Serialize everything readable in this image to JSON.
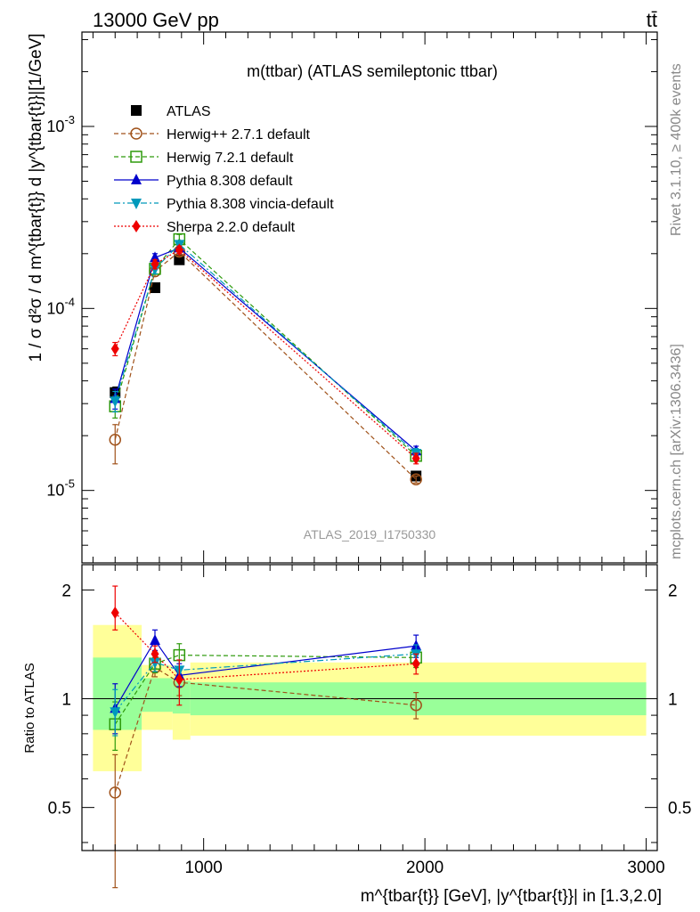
{
  "header": {
    "left": "13000 GeV pp",
    "right": "tt̄"
  },
  "side_labels": {
    "rivet": "Rivet 3.1.10, ≥ 400k events",
    "mcplots": "mcplots.cern.ch [arXiv:1306.3436]"
  },
  "watermark": "ATLAS_2019_I1750330",
  "colors": {
    "atlas": "#000000",
    "herwigpp": "#a0521a",
    "herwig7": "#2e9a0c",
    "pythia": "#0000cc",
    "vincia": "#0099bb",
    "sherpa": "#ee0000",
    "band_inner": "#99ff99",
    "band_outer": "#ffff99"
  },
  "chart_data": [
    {
      "type": "scatter",
      "title": "m(ttbar) (ATLAS semileptonic ttbar)",
      "ylabel": "1 / σ d²σ / d m^{tbar{t}} d |y^{tbar{t}}|[1/GeV]",
      "xlabel": "",
      "xlim": [
        450,
        3050
      ],
      "ylim": [
        4e-06,
        0.0033
      ],
      "yscale": "log",
      "yticks": [
        {
          "label": "10^-5",
          "value": 1e-05
        },
        {
          "label": "10^-4",
          "value": 0.0001
        },
        {
          "label": "10^-3",
          "value": 0.001
        }
      ],
      "legend_position": "top-left",
      "x": [
        600,
        780,
        890,
        1960
      ],
      "series": [
        {
          "name": "ATLAS",
          "key": "atlas",
          "marker": "square-filled",
          "line": "none",
          "values": [
            3.45e-05,
            0.00013,
            0.000185,
            1.2e-05
          ],
          "err_lo": [
            3.2e-05,
            0.000126,
            0.00018,
            1.15e-05
          ],
          "err_hi": [
            3.7e-05,
            0.000134,
            0.00019,
            1.25e-05
          ]
        },
        {
          "name": "Herwig++ 2.7.1 default",
          "key": "herwigpp",
          "marker": "circle-open",
          "line": "dashed",
          "values": [
            1.9e-05,
            0.00016,
            0.000205,
            1.15e-05
          ],
          "err_lo": [
            1.4e-05,
            0.00015,
            0.000195,
            1.1e-05
          ],
          "err_hi": [
            2.3e-05,
            0.00017,
            0.000215,
            1.2e-05
          ]
        },
        {
          "name": "Herwig 7.2.1 default",
          "key": "herwig7",
          "marker": "square-open",
          "line": "dashed",
          "values": [
            2.9e-05,
            0.000165,
            0.00024,
            1.55e-05
          ],
          "err_lo": [
            2.5e-05,
            0.000155,
            0.000225,
            1.45e-05
          ],
          "err_hi": [
            3.3e-05,
            0.000175,
            0.000255,
            1.65e-05
          ]
        },
        {
          "name": "Pythia 8.308 default",
          "key": "pythia",
          "marker": "triangle-up",
          "line": "solid",
          "values": [
            3.2e-05,
            0.00019,
            0.000215,
            1.65e-05
          ],
          "err_lo": [
            2.8e-05,
            0.00018,
            0.000205,
            1.55e-05
          ],
          "err_hi": [
            3.6e-05,
            0.0002,
            0.000225,
            1.75e-05
          ]
        },
        {
          "name": "Pythia 8.308 vincia-default",
          "key": "vincia",
          "marker": "triangle-down",
          "line": "dashdot",
          "values": [
            3.1e-05,
            0.000165,
            0.000225,
            1.6e-05
          ],
          "err_lo": [
            2.7e-05,
            0.000155,
            0.000215,
            1.5e-05
          ],
          "err_hi": [
            3.5e-05,
            0.000175,
            0.000235,
            1.7e-05
          ]
        },
        {
          "name": "Sherpa 2.2.0 default",
          "key": "sherpa",
          "marker": "diamond",
          "line": "dotted",
          "values": [
            6e-05,
            0.000175,
            0.00021,
            1.5e-05
          ],
          "err_lo": [
            5.5e-05,
            0.000165,
            0.0002,
            1.4e-05
          ],
          "err_hi": [
            6.5e-05,
            0.000185,
            0.00022,
            1.6e-05
          ]
        }
      ]
    },
    {
      "type": "scatter",
      "title": "",
      "ylabel": "Ratio to ATLAS",
      "xlabel": "m^{tbar{t}} [GeV], |y^{tbar{t}}| in [1.3,2.0]",
      "xlim": [
        450,
        3050
      ],
      "ylim": [
        0.38,
        2.35
      ],
      "yscale": "log",
      "yticks": [
        {
          "label": "0.5",
          "value": 0.5
        },
        {
          "label": "1",
          "value": 1
        },
        {
          "label": "2",
          "value": 2
        }
      ],
      "xticks": [
        {
          "label": "1000",
          "value": 1000
        },
        {
          "label": "2000",
          "value": 2000
        },
        {
          "label": "3000",
          "value": 3000
        }
      ],
      "reference_line": 1,
      "bands": [
        {
          "x0": 500,
          "x1": 720,
          "inner": [
            0.82,
            1.3
          ],
          "outer": [
            0.63,
            1.6
          ]
        },
        {
          "x0": 720,
          "x1": 860,
          "inner": [
            0.92,
            1.14
          ],
          "outer": [
            0.82,
            1.24
          ]
        },
        {
          "x0": 860,
          "x1": 940,
          "inner": [
            0.91,
            1.12
          ],
          "outer": [
            0.77,
            1.2
          ]
        },
        {
          "x0": 940,
          "x1": 3000,
          "inner": [
            0.9,
            1.11
          ],
          "outer": [
            0.79,
            1.26
          ]
        }
      ],
      "x": [
        600,
        780,
        890,
        1960
      ],
      "series": [
        {
          "name": "Herwig++ 2.7.1 default",
          "key": "herwigpp",
          "values": [
            0.55,
            1.22,
            1.11,
            0.96
          ],
          "err_lo": [
            0.3,
            1.15,
            1.02,
            0.88
          ],
          "err_hi": [
            0.7,
            1.3,
            1.2,
            1.04
          ]
        },
        {
          "name": "Herwig 7.2.1 default",
          "key": "herwig7",
          "values": [
            0.85,
            1.25,
            1.32,
            1.3
          ],
          "err_lo": [
            0.72,
            1.18,
            1.22,
            1.22
          ],
          "err_hi": [
            0.98,
            1.32,
            1.42,
            1.38
          ]
        },
        {
          "name": "Pythia 8.308 default",
          "key": "pythia",
          "values": [
            0.94,
            1.45,
            1.16,
            1.4
          ],
          "err_lo": [
            0.8,
            1.36,
            1.08,
            1.3
          ],
          "err_hi": [
            1.1,
            1.55,
            1.25,
            1.5
          ]
        },
        {
          "name": "Pythia 8.308 vincia-default",
          "key": "vincia",
          "values": [
            0.92,
            1.26,
            1.2,
            1.33
          ],
          "err_lo": [
            0.79,
            1.19,
            1.12,
            1.25
          ],
          "err_hi": [
            1.06,
            1.33,
            1.28,
            1.41
          ]
        },
        {
          "name": "Sherpa 2.2.0 default",
          "key": "sherpa",
          "values": [
            1.73,
            1.33,
            1.13,
            1.25
          ],
          "err_lo": [
            1.55,
            1.26,
            0.96,
            1.17
          ],
          "err_hi": [
            2.05,
            1.4,
            1.28,
            1.33
          ]
        }
      ]
    }
  ]
}
